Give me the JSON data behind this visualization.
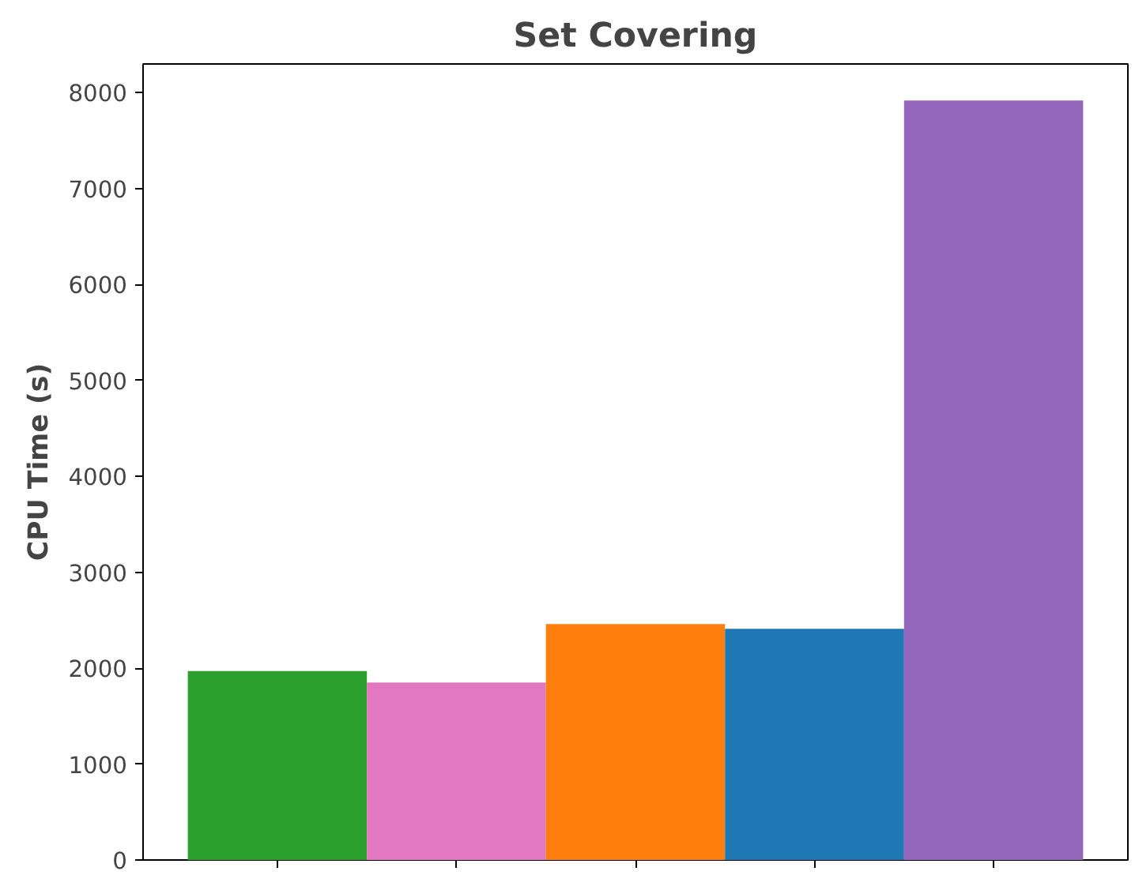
{
  "chart_data": {
    "type": "bar",
    "title": "Set Covering",
    "ylabel": "CPU Time (s)",
    "categories": [
      null,
      null,
      null,
      null,
      null
    ],
    "values": [
      1970,
      1850,
      2460,
      2410,
      7920
    ],
    "colors": [
      "#2ca02c",
      "#e377c2",
      "#ff7f0e",
      "#1f77b4",
      "#9467bd"
    ],
    "ylim": [
      0,
      8300
    ],
    "yticks": [
      0,
      1000,
      2000,
      3000,
      4000,
      5000,
      6000,
      7000,
      8000
    ],
    "grid": false,
    "tick_labels": "y"
  }
}
